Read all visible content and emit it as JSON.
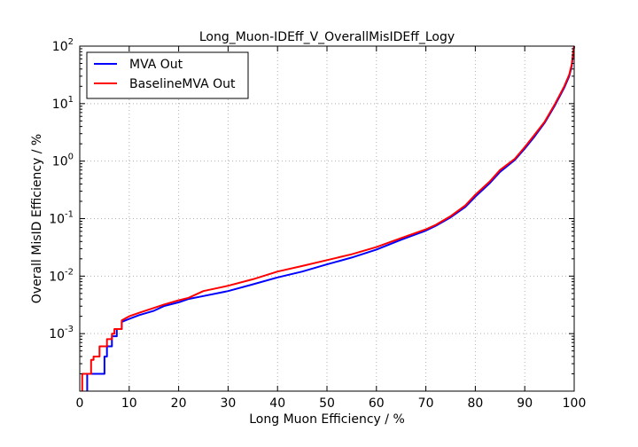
{
  "chart_data": {
    "type": "line",
    "title": "Long_Muon-IDEff_V_OverallMisIDEff_Logy",
    "xlabel": "Long Muon Efficiency / %",
    "ylabel": "Overall MisID Efficiency / %",
    "xlim": [
      0,
      100
    ],
    "ylim": [
      0.0001,
      100
    ],
    "y_scale": "log",
    "grid": true,
    "legend_position": "top-left",
    "x_ticks": [
      {
        "value": 0,
        "label": "0"
      },
      {
        "value": 10,
        "label": "10"
      },
      {
        "value": 20,
        "label": "20"
      },
      {
        "value": 30,
        "label": "30"
      },
      {
        "value": 40,
        "label": "40"
      },
      {
        "value": 50,
        "label": "50"
      },
      {
        "value": 60,
        "label": "60"
      },
      {
        "value": 70,
        "label": "70"
      },
      {
        "value": 80,
        "label": "80"
      },
      {
        "value": 90,
        "label": "90"
      },
      {
        "value": 100,
        "label": "100"
      }
    ],
    "y_ticks": [
      {
        "value": 0.001,
        "base": "10",
        "exp": "-3"
      },
      {
        "value": 0.01,
        "base": "10",
        "exp": "-2"
      },
      {
        "value": 0.1,
        "base": "10",
        "exp": "-1"
      },
      {
        "value": 1,
        "base": "10",
        "exp": "0"
      },
      {
        "value": 10,
        "base": "10",
        "exp": "1"
      },
      {
        "value": 100,
        "base": "10",
        "exp": "2"
      }
    ],
    "series": [
      {
        "name": "MVA Out",
        "color": "#0000ff",
        "x": [
          1.5,
          1.5,
          5,
          5,
          5.5,
          5.5,
          6.5,
          6.5,
          7.5,
          7.5,
          8.5,
          8.5,
          10,
          12,
          15,
          17,
          20,
          22,
          25,
          30,
          35,
          40,
          45,
          50,
          55,
          60,
          65,
          70,
          72,
          75,
          78,
          80,
          83,
          85,
          88,
          90,
          92,
          94,
          96,
          98,
          99,
          99.5,
          99.8,
          100
        ],
        "y": [
          0.0001,
          0.0002,
          0.0002,
          0.0004,
          0.0004,
          0.0006,
          0.0006,
          0.0009,
          0.0009,
          0.0012,
          0.0012,
          0.0016,
          0.0018,
          0.0021,
          0.0025,
          0.003,
          0.0035,
          0.004,
          0.0045,
          0.0055,
          0.0072,
          0.0095,
          0.012,
          0.016,
          0.021,
          0.029,
          0.043,
          0.062,
          0.075,
          0.105,
          0.16,
          0.24,
          0.42,
          0.65,
          1.05,
          1.65,
          2.7,
          4.6,
          9,
          19,
          30,
          45,
          75,
          100
        ]
      },
      {
        "name": "BaselineMVA Out",
        "color": "#ff0000",
        "x": [
          0.5,
          0.5,
          1.3,
          1.3,
          2.3,
          2.3,
          2.8,
          2.8,
          4,
          4,
          5.5,
          5.5,
          6.5,
          6.5,
          7,
          7,
          8.5,
          8.5,
          10,
          12,
          15,
          17,
          20,
          22,
          25,
          30,
          35,
          40,
          45,
          50,
          55,
          60,
          65,
          70,
          72,
          75,
          78,
          80,
          83,
          85,
          88,
          90,
          92,
          94,
          96,
          98,
          99,
          99.5,
          99.8,
          100
        ],
        "y": [
          0.0001,
          0.0002,
          0.0002,
          0.0002,
          0.0002,
          0.00035,
          0.00035,
          0.0004,
          0.0004,
          0.0006,
          0.0006,
          0.0008,
          0.0008,
          0.001,
          0.001,
          0.0012,
          0.0012,
          0.0017,
          0.002,
          0.0023,
          0.0028,
          0.0032,
          0.0038,
          0.0042,
          0.0055,
          0.0068,
          0.0088,
          0.012,
          0.015,
          0.019,
          0.024,
          0.032,
          0.046,
          0.065,
          0.078,
          0.11,
          0.17,
          0.26,
          0.45,
          0.7,
          1.1,
          1.75,
          2.9,
          4.8,
          9.5,
          20,
          32,
          48,
          78,
          100
        ]
      }
    ]
  }
}
